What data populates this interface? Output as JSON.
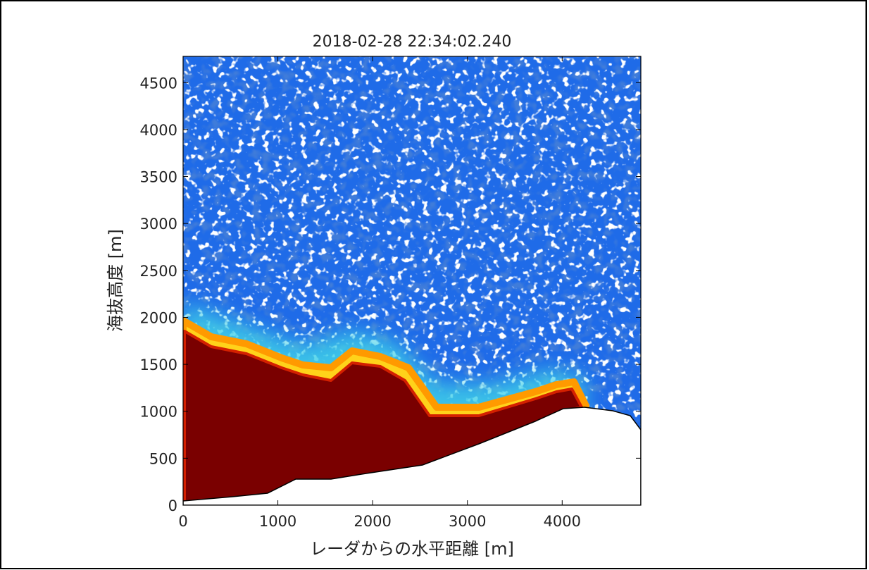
{
  "chart_data": {
    "type": "heatmap",
    "title": "2018-02-28 22:34:02.240",
    "x_label": "レーダからの水平距離 [m]",
    "y_label": "海抜高度 [m]",
    "xlim": [
      0,
      4830
    ],
    "ylim": [
      0,
      4780
    ],
    "xticks": [
      0,
      1000,
      2000,
      3000,
      4000
    ],
    "yticks": [
      0,
      500,
      1000,
      1500,
      2000,
      2500,
      3000,
      3500,
      4000,
      4500
    ]
  }
}
